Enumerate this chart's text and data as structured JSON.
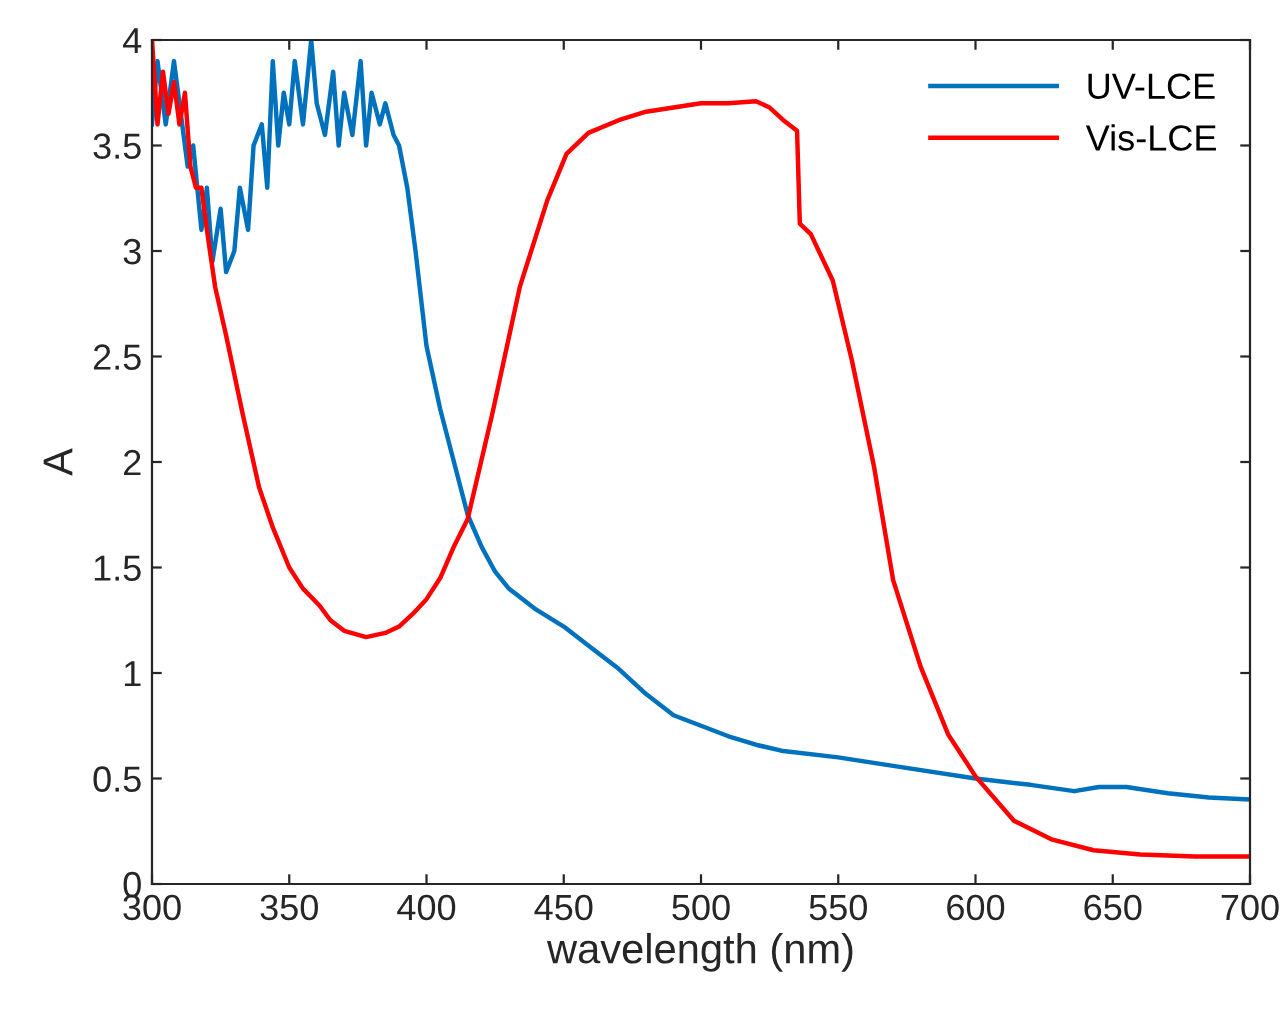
{
  "chart_data": {
    "type": "line",
    "xlabel": "wavelength (nm)",
    "ylabel": "A",
    "xlim": [
      300,
      700
    ],
    "ylim": [
      0,
      4
    ],
    "xticks": [
      300,
      350,
      400,
      450,
      500,
      550,
      600,
      650,
      700
    ],
    "yticks": [
      0,
      0.5,
      1,
      1.5,
      2,
      2.5,
      3,
      3.5,
      4
    ],
    "grid": false,
    "legend": "top right",
    "series": [
      {
        "name": "UV-LCE",
        "color": "#0072bd",
        "x": [
          300,
          302,
          305,
          308,
          310,
          313,
          315,
          318,
          320,
          322,
          325,
          327,
          330,
          332,
          335,
          337,
          340,
          342,
          344,
          346,
          348,
          350,
          352,
          355,
          358,
          360,
          363,
          366,
          368,
          370,
          373,
          376,
          378,
          380,
          383,
          385,
          388,
          390,
          393,
          396,
          400,
          405,
          410,
          415,
          420,
          425,
          430,
          440,
          450,
          460,
          470,
          480,
          490,
          500,
          510,
          520,
          530,
          550,
          570,
          600,
          620,
          636,
          645,
          655,
          670,
          685,
          700
        ],
        "values": [
          3.6,
          3.9,
          3.6,
          3.9,
          3.7,
          3.4,
          3.5,
          3.1,
          3.3,
          2.95,
          3.2,
          2.9,
          3.0,
          3.3,
          3.1,
          3.5,
          3.6,
          3.3,
          3.9,
          3.5,
          3.75,
          3.6,
          3.9,
          3.6,
          4.0,
          3.7,
          3.55,
          3.85,
          3.5,
          3.75,
          3.55,
          3.9,
          3.5,
          3.75,
          3.6,
          3.7,
          3.55,
          3.5,
          3.3,
          3.0,
          2.55,
          2.25,
          2.0,
          1.75,
          1.6,
          1.48,
          1.4,
          1.3,
          1.22,
          1.12,
          1.02,
          0.9,
          0.8,
          0.75,
          0.7,
          0.66,
          0.63,
          0.6,
          0.56,
          0.5,
          0.47,
          0.44,
          0.46,
          0.46,
          0.43,
          0.41,
          0.4
        ]
      },
      {
        "name": "Vis-LCE",
        "color": "#ff0000",
        "x": [
          300,
          302,
          304,
          306,
          308,
          310,
          312,
          314,
          316,
          318,
          320,
          323,
          327,
          333,
          339,
          344,
          350,
          355,
          361,
          365,
          370,
          378,
          385,
          390,
          395,
          400,
          405,
          410,
          415,
          424,
          434,
          444,
          451,
          459,
          470,
          480,
          490,
          500,
          510,
          520,
          525,
          530,
          535,
          536,
          540,
          548,
          555,
          563,
          570,
          580,
          590,
          600,
          614,
          628,
          643,
          660,
          680,
          700
        ],
        "values": [
          4.0,
          3.6,
          3.85,
          3.65,
          3.8,
          3.6,
          3.75,
          3.4,
          3.3,
          3.3,
          3.1,
          2.83,
          2.6,
          2.23,
          1.88,
          1.69,
          1.5,
          1.4,
          1.32,
          1.25,
          1.2,
          1.17,
          1.19,
          1.22,
          1.28,
          1.35,
          1.45,
          1.6,
          1.73,
          2.23,
          2.83,
          3.24,
          3.46,
          3.56,
          3.62,
          3.66,
          3.68,
          3.7,
          3.7,
          3.71,
          3.68,
          3.62,
          3.57,
          3.13,
          3.08,
          2.86,
          2.48,
          1.98,
          1.44,
          1.03,
          0.71,
          0.51,
          0.3,
          0.21,
          0.16,
          0.14,
          0.13,
          0.13
        ]
      }
    ]
  }
}
